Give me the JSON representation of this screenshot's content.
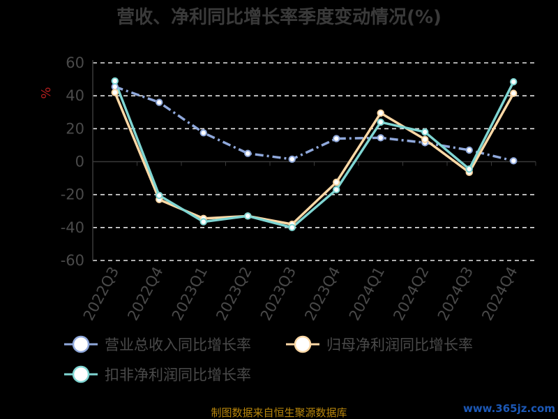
{
  "chart_data": {
    "type": "line",
    "title": "营收、净利同比增长率季度变动情况(%)",
    "ylabel": "%",
    "categories": [
      "2022Q3",
      "2022Q4",
      "2023Q1",
      "2023Q2",
      "2023Q3",
      "2023Q4",
      "2024Q1",
      "2024Q2",
      "2024Q3",
      "2024Q4"
    ],
    "y_ticks": [
      "60",
      "40",
      "20",
      "0",
      "-20",
      "-40",
      "-60"
    ],
    "ylim": [
      -60,
      60
    ],
    "grid": "horizontal-dashed",
    "legend_position": "bottom",
    "series": [
      {
        "name": "营业总收入同比增长率",
        "color": "#8fa8db",
        "line_style": "dash-dot",
        "values": [
          45.5,
          36,
          17.5,
          5,
          1.5,
          14,
          14.5,
          11.5,
          7,
          0.5
        ]
      },
      {
        "name": "归母净利润同比增长率",
        "color": "#ffd9a6",
        "line_style": "solid",
        "values": [
          42,
          -23,
          -34.5,
          -33,
          -38,
          -12.5,
          29.5,
          13.5,
          -6.5,
          41.5
        ]
      },
      {
        "name": "扣非净利润同比增长率",
        "color": "#7fd6d3",
        "line_style": "solid",
        "values": [
          49,
          -20.5,
          -36.5,
          -33,
          -40,
          -17,
          24,
          18,
          -4.5,
          48.5
        ]
      }
    ]
  },
  "footer": {
    "source": "制图数据来自恒生聚源数据库",
    "watermark": "www.365jz.com"
  }
}
